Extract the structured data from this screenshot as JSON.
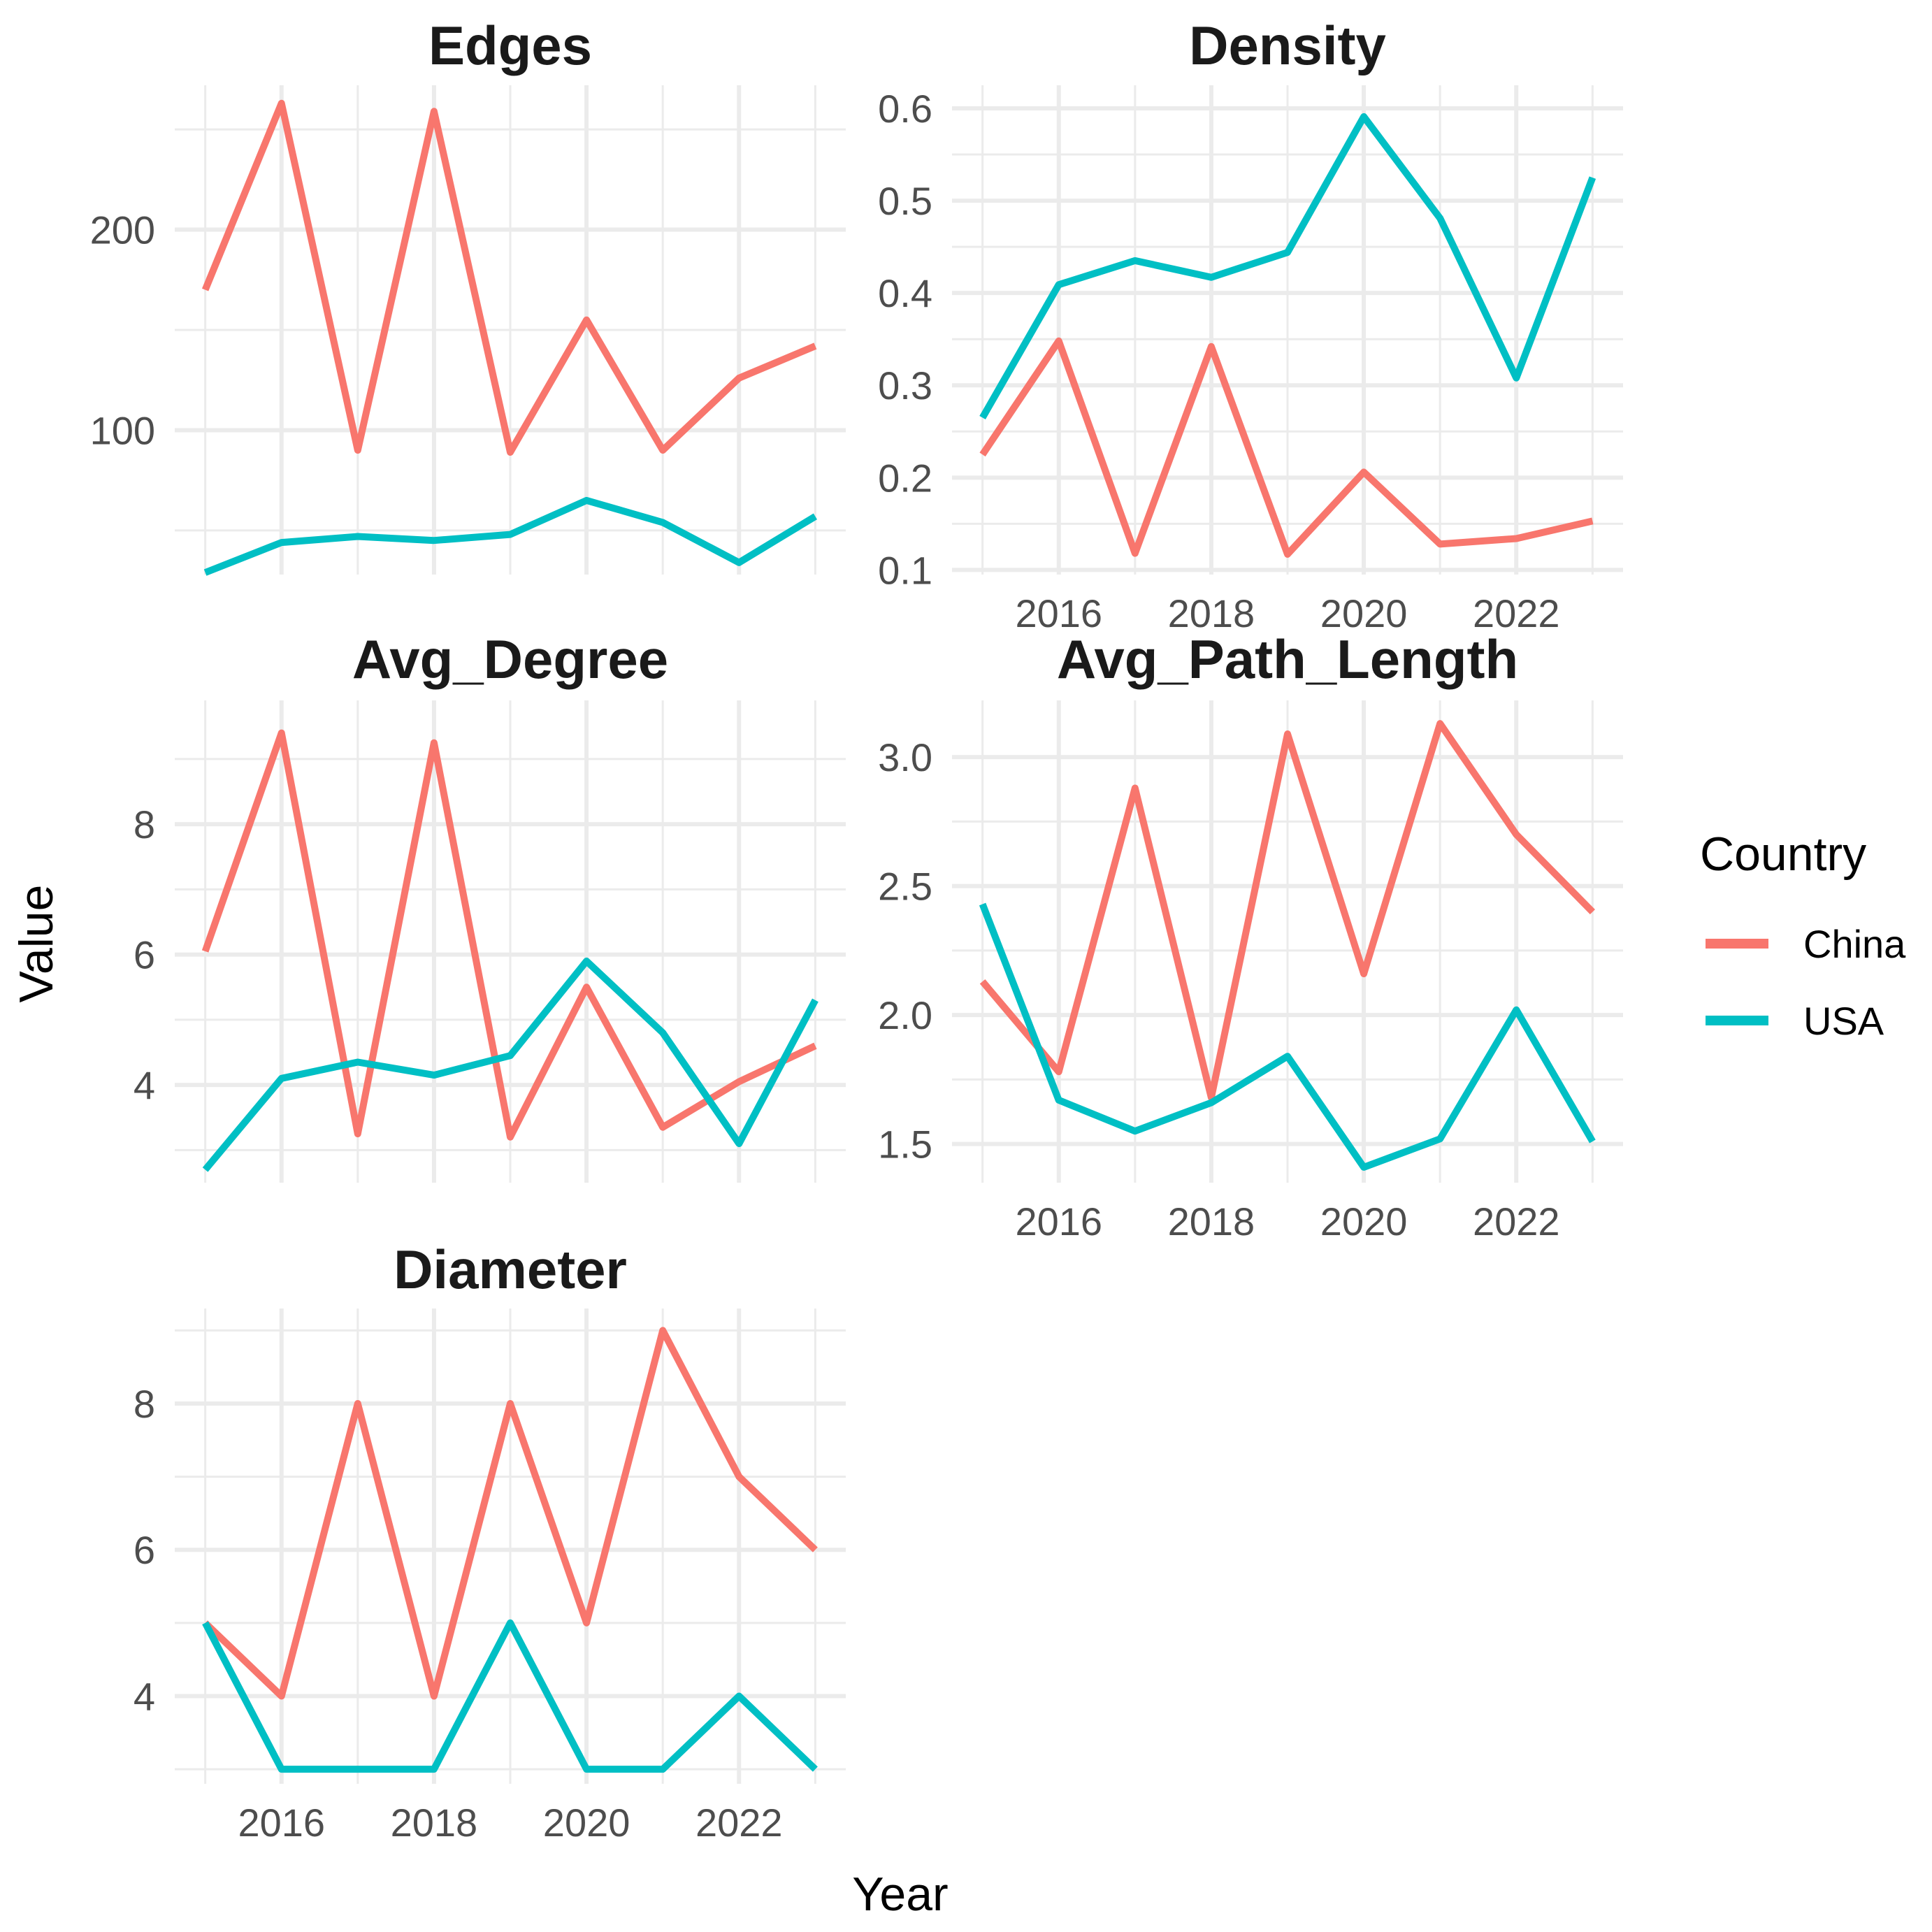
{
  "chart_data": {
    "type": "line",
    "x_label": "Year",
    "y_label": "Value",
    "legend": {
      "title": "Country",
      "placement": "right",
      "entries": [
        {
          "name": "China",
          "color": "#F8766D"
        },
        {
          "name": "USA",
          "color": "#00BFC4"
        }
      ]
    },
    "x": [
      2015,
      2016,
      2017,
      2018,
      2019,
      2020,
      2021,
      2022,
      2023
    ],
    "x_ticks": [
      "2016",
      "2018",
      "2020",
      "2022"
    ],
    "panels": [
      {
        "title": "Edges",
        "ylim": [
          28,
          272
        ],
        "y_ticks": [
          "100",
          "200"
        ],
        "series": [
          {
            "name": "China",
            "values": [
              170,
              263,
              90,
              259,
              89,
              155,
              90,
              126,
              142
            ]
          },
          {
            "name": "USA",
            "values": [
              29,
              44,
              47,
              45,
              48,
              65,
              54,
              34,
              57
            ]
          }
        ]
      },
      {
        "title": "Density",
        "ylim": [
          0.095,
          0.625
        ],
        "y_ticks": [
          "0.1",
          "0.2",
          "0.3",
          "0.4",
          "0.5",
          "0.6"
        ],
        "series": [
          {
            "name": "China",
            "values": [
              0.225,
              0.348,
              0.118,
              0.342,
              0.117,
              0.206,
              0.128,
              0.134,
              0.153
            ]
          },
          {
            "name": "USA",
            "values": [
              0.265,
              0.409,
              0.435,
              0.417,
              0.444,
              0.591,
              0.481,
              0.308,
              0.525
            ]
          }
        ]
      },
      {
        "title": "Avg_Degree",
        "ylim": [
          2.5,
          9.9
        ],
        "y_ticks": [
          "4",
          "6",
          "8"
        ],
        "series": [
          {
            "name": "China",
            "values": [
              6.05,
              9.4,
              3.25,
              9.25,
              3.2,
              5.5,
              3.35,
              4.05,
              4.6
            ]
          },
          {
            "name": "USA",
            "values": [
              2.7,
              4.1,
              4.35,
              4.15,
              4.45,
              5.9,
              4.8,
              3.1,
              5.3
            ]
          }
        ]
      },
      {
        "title": "Avg_Path_Length",
        "ylim": [
          1.35,
          3.22
        ],
        "y_ticks": [
          "1.5",
          "2.0",
          "2.5",
          "3.0"
        ],
        "series": [
          {
            "name": "China",
            "values": [
              2.13,
              1.78,
              2.88,
              1.68,
              3.09,
              2.16,
              3.13,
              2.7,
              2.4
            ]
          },
          {
            "name": "USA",
            "values": [
              2.43,
              1.67,
              1.55,
              1.66,
              1.84,
              1.41,
              1.52,
              2.02,
              1.51
            ]
          }
        ]
      },
      {
        "title": "Diameter",
        "ylim": [
          2.8,
          9.3
        ],
        "y_ticks": [
          "4",
          "6",
          "8"
        ],
        "series": [
          {
            "name": "China",
            "values": [
              5,
              4,
              8,
              4,
              8,
              5,
              9,
              7,
              6
            ]
          },
          {
            "name": "USA",
            "values": [
              5,
              3,
              3,
              3,
              5,
              3,
              3,
              4,
              3
            ]
          }
        ]
      }
    ]
  }
}
